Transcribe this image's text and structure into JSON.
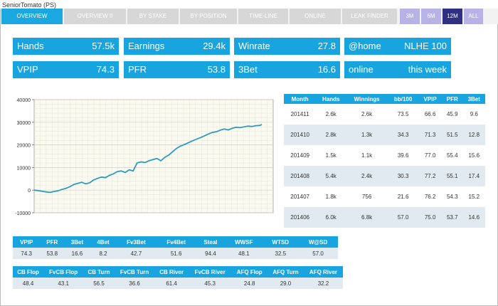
{
  "player_title": "SeniorTomato (PS)",
  "tabs": [
    "OVERVIEW",
    "OVERVIEW II",
    "BY STAKE",
    "BY POSITION",
    "TIME-LINE",
    "ONLINE",
    "LEAK FINDER"
  ],
  "active_tab": "OVERVIEW",
  "periods": [
    "3M",
    "6M",
    "12M",
    "ALL"
  ],
  "active_period": "12M",
  "stats": {
    "hands": {
      "label": "Hands",
      "value": "57.5k"
    },
    "earnings": {
      "label": "Earnings",
      "value": "29.4k"
    },
    "winrate": {
      "label": "Winrate",
      "value": "27.8"
    },
    "home": {
      "label": "@home",
      "value": "NLHE 100"
    },
    "vpip": {
      "label": "VPIP",
      "value": "74.3"
    },
    "pfr": {
      "label": "PFR",
      "value": "53.8"
    },
    "threebet": {
      "label": "3Bet",
      "value": "16.6"
    },
    "online": {
      "label": "online",
      "value": "this week"
    }
  },
  "monthly_table": {
    "headers": [
      "Month",
      "Hands",
      "Winnings",
      "bb/100",
      "VPIP",
      "PFR",
      "3Bet"
    ],
    "rows": [
      [
        "201411",
        "2.6k",
        "2.6k",
        "73.5",
        "66.6",
        "45.9",
        "9.6"
      ],
      [
        "201410",
        "2.8k",
        "1.3k",
        "34.3",
        "71.3",
        "51.5",
        "12.8"
      ],
      [
        "201409",
        "1.5k",
        "1.1k",
        "39.6",
        "77.0",
        "55.4",
        "15.6"
      ],
      [
        "201408",
        "5.4k",
        "2.4k",
        "30.3",
        "77.2",
        "55.1",
        "17.4"
      ],
      [
        "201407",
        "1.8k",
        "756",
        "21.6",
        "76.2",
        "54.3",
        "15.2"
      ],
      [
        "201406",
        "6.0k",
        "6.8k",
        "57.0",
        "75.0",
        "53.7",
        "14.6"
      ]
    ]
  },
  "preflop_stats": {
    "headers": [
      "VPIP",
      "PFR",
      "3Bet",
      "4Bet",
      "Fv3Bet",
      "Fv4Bet",
      "Steal",
      "WWSF",
      "WTSD",
      "W@SD"
    ],
    "values": [
      "74.3",
      "53.8",
      "16.6",
      "8.2",
      "42.7",
      "51.6",
      "94.4",
      "48.1",
      "32.5",
      "57.0"
    ]
  },
  "postflop_stats": {
    "headers": [
      "CB Flop",
      "FvCB Flop",
      "CB Turn",
      "FvCB Turn",
      "CB River",
      "FvCB River",
      "AFQ Flop",
      "AFQ Turn",
      "AFQ River"
    ],
    "values": [
      "48.4",
      "43.1",
      "56.5",
      "36.6",
      "61.4",
      "45.3",
      "24.8",
      "29.0",
      "32.2"
    ]
  },
  "chart_data": {
    "type": "line",
    "ylim": [
      -10000,
      40000
    ],
    "yticks": [
      "40000",
      "30000",
      "20000",
      "10000",
      "0",
      "-10000"
    ],
    "x": [
      0,
      1000,
      2000,
      3000,
      4000,
      5000,
      6000,
      7000,
      8000,
      9000,
      10000,
      11000,
      12000,
      13000,
      14000,
      15000,
      16000,
      17000,
      18000,
      19000,
      20000,
      21000,
      22000,
      23000,
      24000,
      25000,
      26000,
      27000,
      28000,
      29000,
      30000,
      31000,
      32000,
      33000,
      34000,
      35000,
      36000,
      37000,
      38000,
      39000,
      40000,
      41000,
      42000,
      43000,
      44000,
      45000,
      46000,
      47000,
      48000,
      49000,
      50000,
      51000,
      52000,
      53000,
      54000,
      55000,
      56000,
      57000,
      57500
    ],
    "y": [
      0,
      -200,
      -500,
      -800,
      -1000,
      -600,
      -300,
      300,
      800,
      1500,
      2500,
      3000,
      3500,
      2800,
      3200,
      4500,
      5200,
      5800,
      5500,
      6500,
      7200,
      8200,
      8500,
      7800,
      9000,
      8500,
      12000,
      12500,
      12200,
      13000,
      13500,
      14000,
      13000,
      14500,
      15500,
      17000,
      18500,
      19500,
      20200,
      21000,
      21800,
      22500,
      23200,
      24000,
      24800,
      25500,
      25800,
      26500,
      27000,
      26600,
      27300,
      27800,
      27600,
      28000,
      28300,
      28100,
      28500,
      28600,
      29000
    ],
    "grid": true,
    "series_color": "#2f9bbd"
  }
}
